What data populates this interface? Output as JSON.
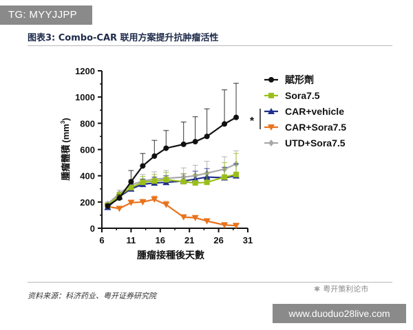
{
  "watermark_top": "TG: MYYJJPP",
  "figure_title": "图表3: Combo-CAR 联用方案提升抗肿瘤活性",
  "source": "资料来源：科济药业、粤开证券研究院",
  "wechat_watermark": "粤开策利论市",
  "url_watermark": "www.duoduo28live.com",
  "chart_data": {
    "type": "line",
    "xlabel": "腫瘤接種後天數",
    "ylabel": "腫瘤體積",
    "ylabel_unit_base": "(mm",
    "ylabel_unit_exp": "3",
    "ylabel_unit_close": ")",
    "xlim": [
      6,
      31
    ],
    "ylim": [
      0,
      1200
    ],
    "xticks": [
      "6",
      "11",
      "16",
      "21",
      "26",
      "31"
    ],
    "yticks": [
      "0",
      "200",
      "400",
      "600",
      "800",
      "1000",
      "1200"
    ],
    "significance_marker": "*",
    "series": [
      {
        "name": "賦形劑",
        "color": "#111111",
        "marker": "circle",
        "x": [
          7,
          9,
          11,
          13,
          15,
          17,
          20,
          22,
          24,
          27,
          29
        ],
        "y": [
          170,
          230,
          355,
          475,
          550,
          610,
          640,
          660,
          700,
          795,
          845
        ],
        "err": [
          15,
          25,
          85,
          95,
          120,
          135,
          170,
          190,
          210,
          260,
          260
        ]
      },
      {
        "name": "Sora7.5",
        "color": "#9bbf1a",
        "marker": "square",
        "x": [
          7,
          9,
          11,
          13,
          15,
          17,
          20,
          22,
          24,
          27,
          29
        ],
        "y": [
          175,
          250,
          310,
          350,
          360,
          370,
          355,
          345,
          350,
          390,
          410
        ],
        "err": [
          15,
          25,
          40,
          45,
          50,
          55,
          60,
          65,
          70,
          110,
          160
        ]
      },
      {
        "name": "CAR+vehicle",
        "color": "#1f2f8a",
        "marker": "triangle-up",
        "x": [
          7,
          9,
          11,
          13,
          15,
          17,
          20,
          22,
          24,
          27,
          29
        ],
        "y": [
          160,
          240,
          300,
          335,
          345,
          350,
          360,
          375,
          390,
          385,
          400
        ],
        "err": [
          15,
          25,
          35,
          40,
          45,
          50,
          55,
          60,
          65,
          80,
          90
        ]
      },
      {
        "name": "CAR+Sora7.5",
        "color": "#e8731e",
        "marker": "triangle-down",
        "x": [
          7,
          9,
          11,
          13,
          15,
          17,
          20,
          22,
          24,
          27,
          29
        ],
        "y": [
          165,
          150,
          195,
          200,
          220,
          180,
          85,
          80,
          55,
          25,
          20
        ],
        "err": [
          10,
          15,
          20,
          20,
          25,
          25,
          15,
          15,
          10,
          8,
          8
        ]
      },
      {
        "name": "UTD+Sora7.5",
        "color": "#a8a8a8",
        "marker": "diamond",
        "x": [
          7,
          9,
          11,
          13,
          15,
          17,
          20,
          22,
          24,
          27,
          29
        ],
        "y": [
          185,
          265,
          330,
          360,
          375,
          380,
          390,
          400,
          420,
          450,
          490
        ],
        "err": [
          15,
          25,
          40,
          50,
          55,
          60,
          70,
          80,
          90,
          95,
          100
        ]
      }
    ]
  }
}
